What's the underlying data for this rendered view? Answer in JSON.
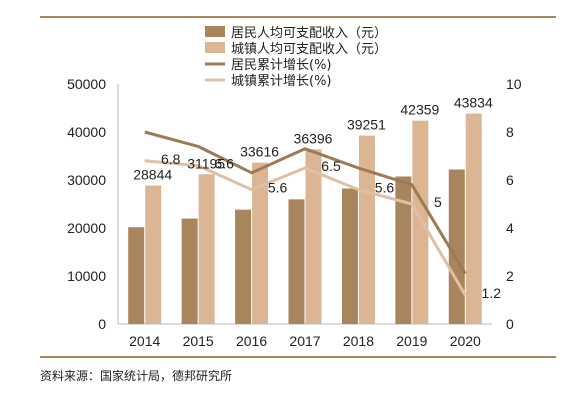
{
  "source": "资料来源：国家统计局，德邦研究所",
  "colors": {
    "bar_resident": "#a9855e",
    "bar_urban": "#dcb594",
    "line_resident": "#9c7a56",
    "line_urban": "#e0c0a4",
    "rule": "#a9855e"
  },
  "chart_data": {
    "type": "bar",
    "categories": [
      "2014",
      "2015",
      "2016",
      "2017",
      "2018",
      "2019",
      "2020"
    ],
    "series": [
      {
        "name": "居民人均可支配收入（元）",
        "kind": "bar",
        "axis": "left",
        "values": [
          20167,
          21966,
          23821,
          25974,
          28228,
          30733,
          32189
        ],
        "labels": []
      },
      {
        "name": "城镇人均可支配收入（元）",
        "kind": "bar",
        "axis": "left",
        "values": [
          28844,
          31195,
          33616,
          36396,
          39251,
          42359,
          43834
        ],
        "labels": [
          "28844",
          "31195",
          "33616",
          "36396",
          "39251",
          "42359",
          "43834"
        ]
      },
      {
        "name": "居民累计增长(%)",
        "kind": "line",
        "axis": "right",
        "values": [
          8.0,
          7.4,
          6.3,
          7.3,
          6.5,
          5.8,
          2.1
        ],
        "labels": []
      },
      {
        "name": "城镇累计增长(%)",
        "kind": "line",
        "axis": "right",
        "values": [
          6.8,
          6.6,
          5.6,
          6.5,
          5.6,
          5.0,
          1.2
        ],
        "labels": [
          "6.8",
          "6.6",
          "5.6",
          "6.5",
          "5.6",
          "5",
          "1.2"
        ]
      }
    ],
    "y_left": {
      "ylim": [
        0,
        50000
      ],
      "ticks": [
        "0",
        "10000",
        "20000",
        "30000",
        "40000",
        "50000"
      ]
    },
    "y_right": {
      "ylim": [
        0,
        10
      ],
      "ticks": [
        "0",
        "2",
        "4",
        "6",
        "8",
        "10"
      ]
    },
    "grid": false,
    "legend": "top-center"
  }
}
